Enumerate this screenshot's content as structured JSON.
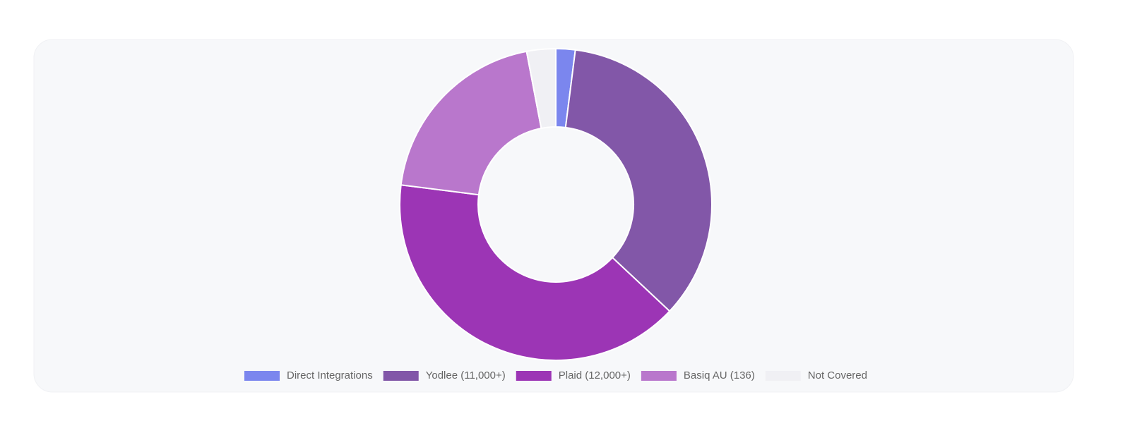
{
  "chart_data": {
    "type": "doughnut",
    "categories": [
      "Direct Integrations",
      "Yodlee (11,000+)",
      "Plaid (12,000+)",
      "Basiq AU (136)",
      "Not Covered"
    ],
    "values": [
      2,
      35,
      40,
      20,
      3
    ],
    "colors": [
      "#7b86ee",
      "#8257a8",
      "#9c35b5",
      "#b977cc",
      "#f0f0f4"
    ],
    "legend": "bottom"
  }
}
